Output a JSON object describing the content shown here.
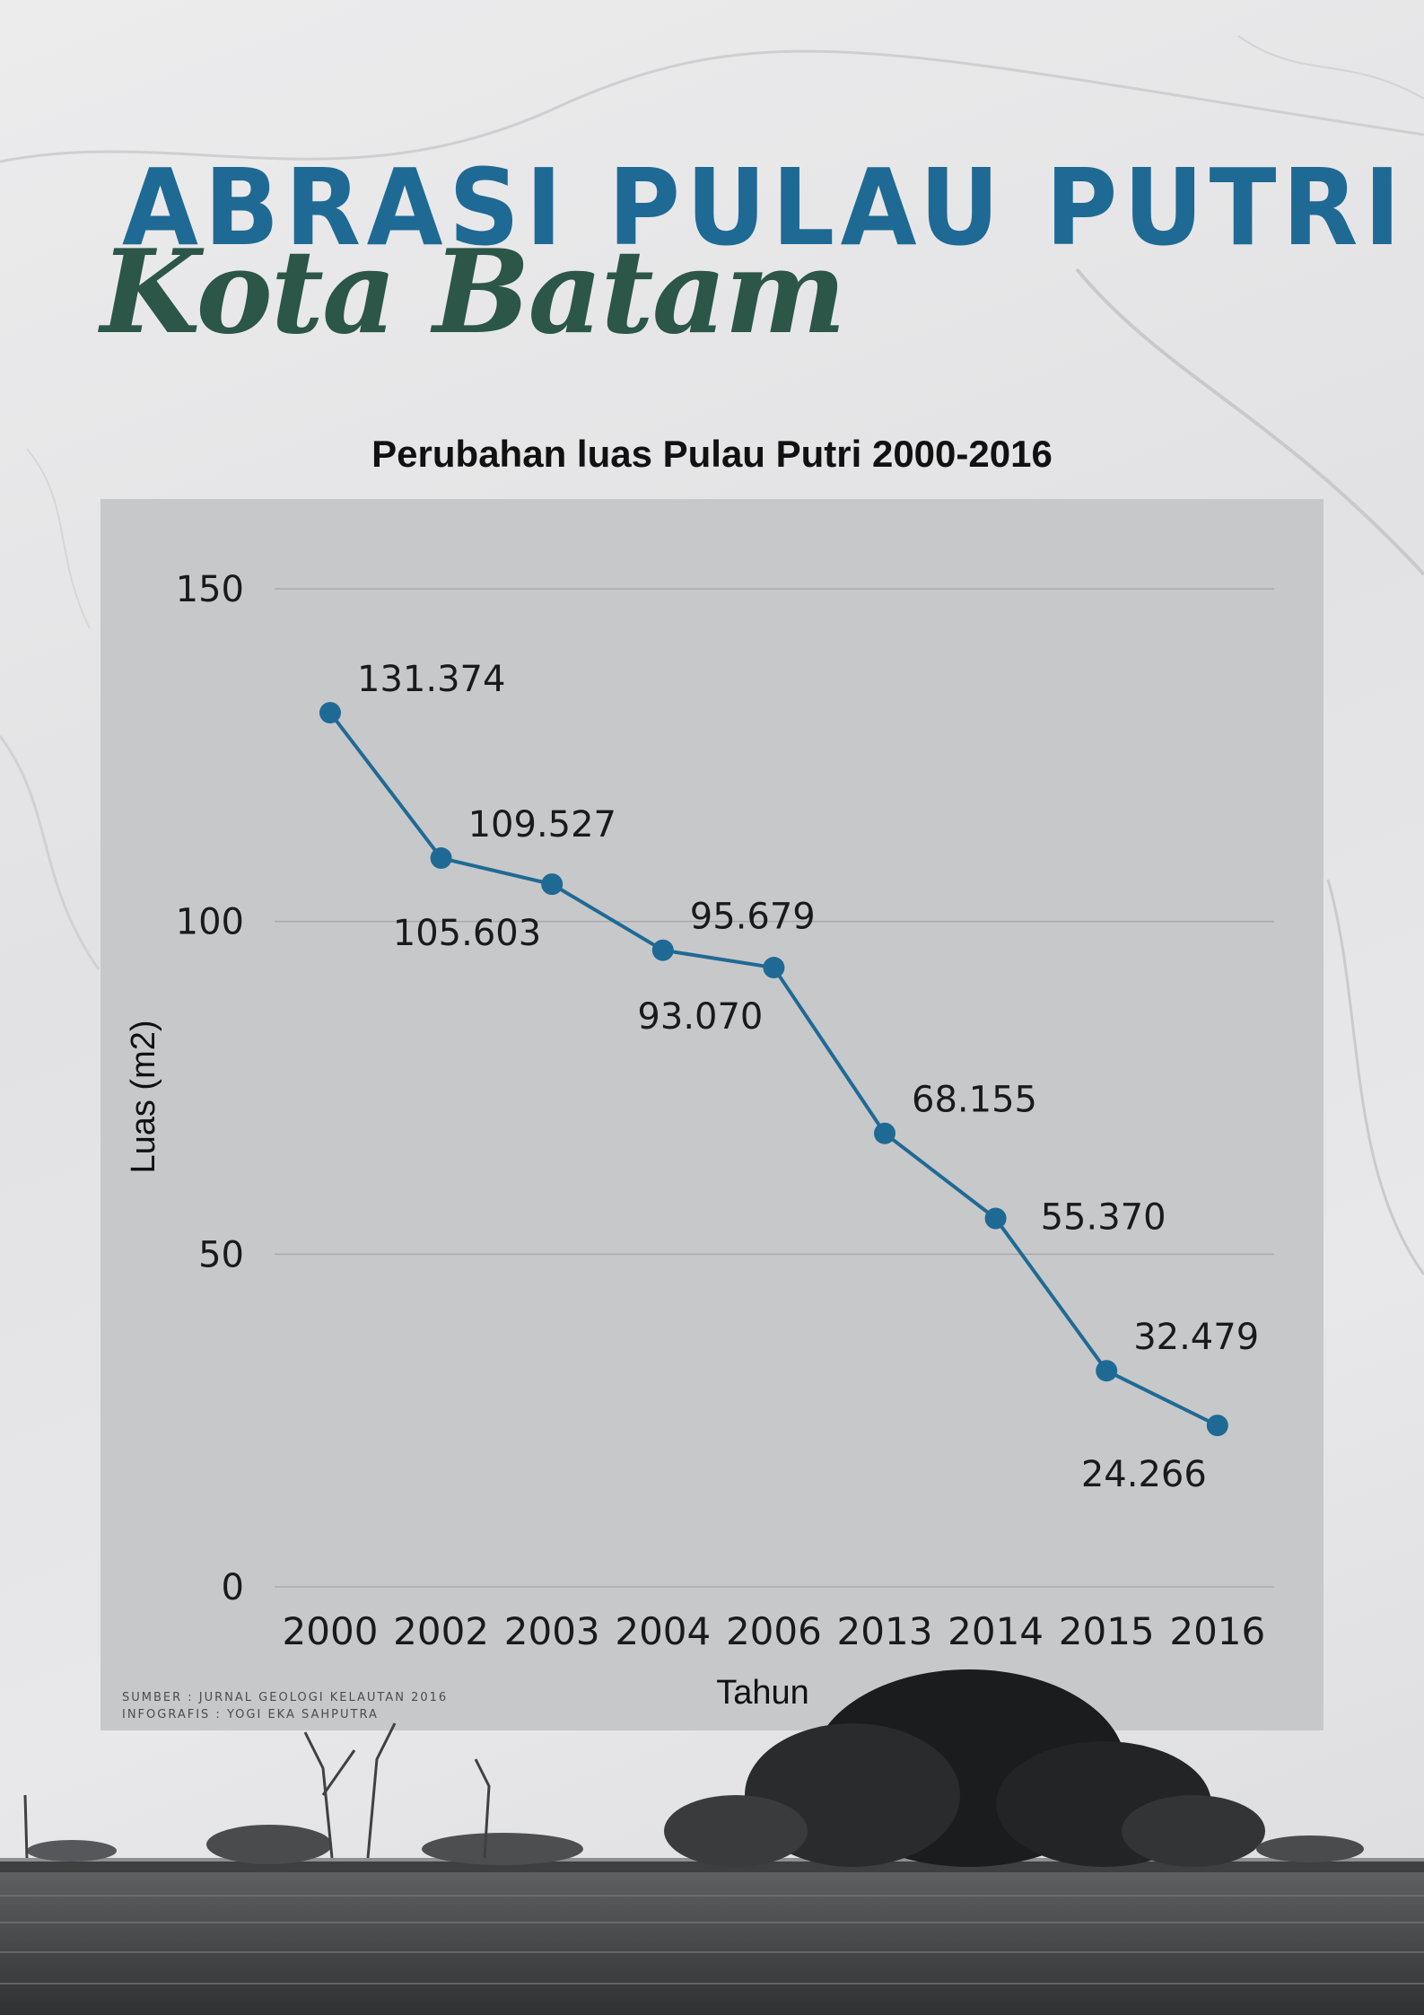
{
  "title": {
    "main": "ABRASI PULAU PUTRI",
    "sub": "Kota Batam"
  },
  "source": {
    "line1": "SUMBER : JURNAL GEOLOGI KELAUTAN 2016",
    "line2": "INFOGRAFIS : YOGI EKA SAHPUTRA"
  },
  "colors": {
    "title_blue": "#1f6a94",
    "subtitle_green": "#2c5647",
    "series_line": "#1f6a94",
    "panel_bg": "#c7c8ca"
  },
  "chart_data": {
    "type": "line",
    "title": "Perubahan luas Pulau Putri 2000-2016",
    "xlabel": "Tahun",
    "ylabel": "Luas (m2)",
    "categories": [
      "2000",
      "2002",
      "2003",
      "2004",
      "2006",
      "2013",
      "2014",
      "2015",
      "2016"
    ],
    "values": [
      131.374,
      109.527,
      105.603,
      95.679,
      93.07,
      68.155,
      55.37,
      32.479,
      24.266
    ],
    "data_labels": [
      "131.374",
      "109.527",
      "105.603",
      "95.679",
      "93.070",
      "68.155",
      "55.370",
      "32.479",
      "24.266"
    ],
    "label_positions": [
      "above-right",
      "above-right",
      "below-left",
      "above-right",
      "below-left",
      "above-right",
      "right",
      "above-right",
      "below-left"
    ],
    "ylim": [
      0,
      150
    ],
    "yticks": [
      0,
      50,
      100,
      150
    ],
    "grid": true,
    "legend": "none"
  }
}
